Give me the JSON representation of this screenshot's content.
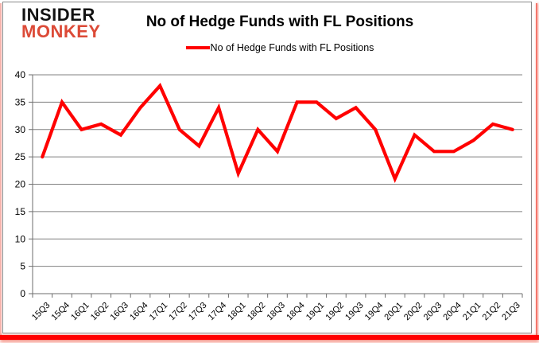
{
  "logo": {
    "line1": "INSIDER",
    "line2": "MONKEY"
  },
  "title": "No of Hedge Funds with FL Positions",
  "legend": {
    "label": "No of Hedge Funds with FL Positions"
  },
  "colors": {
    "series_line": "#ff0000",
    "logo_text_black": "#121212",
    "logo_text_red": "#dc4a37",
    "gridline": "#808080",
    "axis": "#6e6e6e",
    "tick_label": "#000000",
    "frame_border": "#898989",
    "bottom_bar": "#ff0000"
  },
  "chart_data": {
    "type": "line",
    "title": "No of Hedge Funds with FL Positions",
    "categories": [
      "15Q3",
      "15Q4",
      "16Q1",
      "16Q2",
      "16Q3",
      "16Q4",
      "17Q1",
      "17Q2",
      "17Q3",
      "17Q4",
      "18Q1",
      "18Q2",
      "18Q3",
      "18Q4",
      "19Q1",
      "19Q2",
      "19Q3",
      "19Q4",
      "20Q1",
      "20Q2",
      "20Q3",
      "20Q4",
      "21Q1",
      "21Q2",
      "21Q3"
    ],
    "series": [
      {
        "name": "No of Hedge Funds with FL Positions",
        "color": "#ff0000",
        "values": [
          25,
          35,
          30,
          31,
          29,
          34,
          38,
          30,
          27,
          34,
          22,
          30,
          26,
          35,
          35,
          32,
          34,
          30,
          21,
          29,
          26,
          26,
          28,
          31,
          30
        ]
      }
    ],
    "xlabel": "",
    "ylabel": "",
    "ylim": [
      0,
      40
    ],
    "ytick_step": 5,
    "grid": true,
    "legend_position": "top"
  }
}
